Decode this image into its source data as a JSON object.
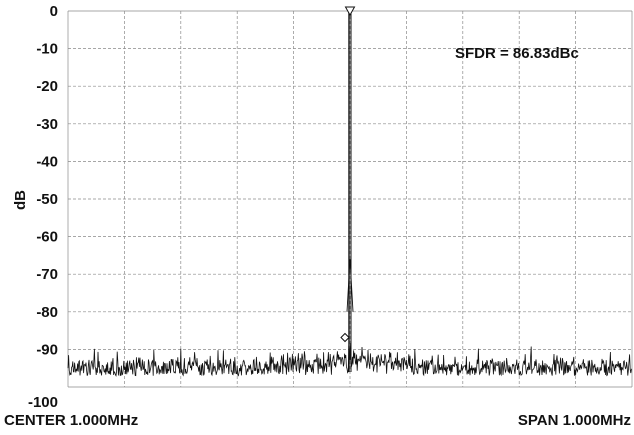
{
  "chart_data": {
    "type": "line",
    "title": "",
    "ylabel": "dB",
    "xlabel": "",
    "ylim": [
      -100,
      0
    ],
    "yticks": [
      "0",
      "-10",
      "-20",
      "-30",
      "-40",
      "-50",
      "-60",
      "-70",
      "-80",
      "-90",
      "-100"
    ],
    "x_center_label": "CENTER 1.000MHz",
    "x_span_label": "SPAN 1.000MHz",
    "annotation": "SFDR = 86.83dBc",
    "grid": true,
    "series": [
      {
        "peak_x_fraction": 0.5,
        "peak_db": 0,
        "noise_floor_db_range": [
          -97,
          -93
        ],
        "spur_db": -86.83
      }
    ]
  }
}
